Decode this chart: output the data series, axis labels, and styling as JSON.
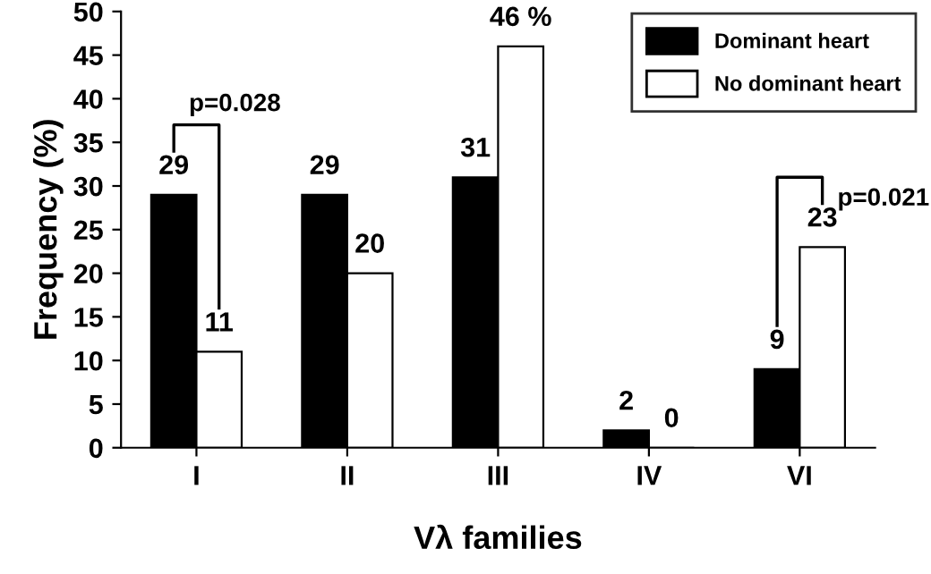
{
  "chart_data": {
    "type": "bar",
    "xlabel": "Vλ families",
    "ylabel": "Frequency (%)",
    "categories": [
      "I",
      "II",
      "III",
      "IV",
      "VI"
    ],
    "series": [
      {
        "name": "Dominant heart",
        "color": "#000000",
        "values": [
          29,
          29,
          31,
          2,
          9
        ],
        "value_labels": [
          "29",
          "29",
          "31",
          "2",
          "9"
        ]
      },
      {
        "name": "No dominant heart",
        "color": "#ffffff",
        "values": [
          11,
          20,
          46,
          0,
          23
        ],
        "value_labels": [
          "11",
          "20",
          "46 %",
          "0",
          "23"
        ]
      }
    ],
    "ylim": [
      0,
      50
    ],
    "yticks": [
      0,
      5,
      10,
      15,
      20,
      25,
      30,
      35,
      40,
      45,
      50
    ],
    "grid": false,
    "legend": "top right",
    "annotations": [
      "p=0.028",
      "p=0.021"
    ]
  }
}
